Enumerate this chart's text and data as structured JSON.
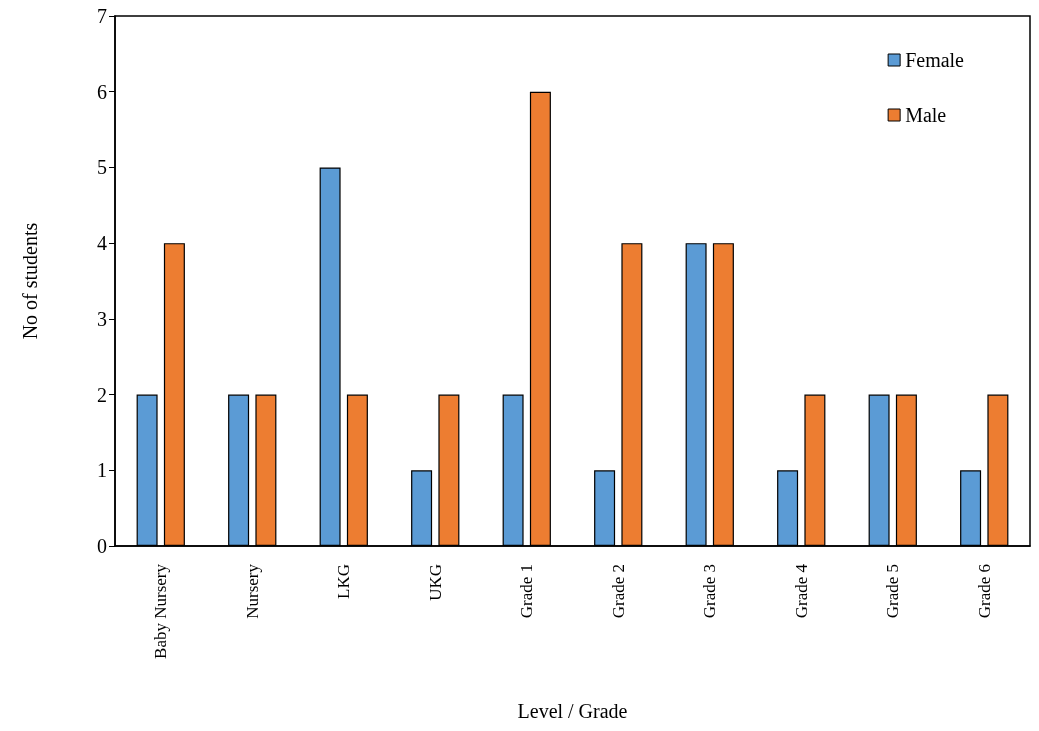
{
  "chart_data": {
    "type": "bar",
    "xlabel": "Level / Grade",
    "ylabel": "No of students",
    "categories": [
      "Baby Nursery",
      "Nursery",
      "LKG",
      "UKG",
      "Grade 1",
      "Grade 2",
      "Grade 3",
      "Grade 4",
      "Grade 5",
      "Grade 6"
    ],
    "series": [
      {
        "name": "Female",
        "color": "#5b9bd5",
        "values": [
          2,
          2,
          5,
          1,
          2,
          1,
          4,
          1,
          2,
          1
        ]
      },
      {
        "name": "Male",
        "color": "#ed7d31",
        "values": [
          4,
          2,
          2,
          2,
          6,
          4,
          4,
          2,
          2,
          2
        ]
      }
    ],
    "ylim": [
      0,
      7
    ],
    "yticks": [
      0,
      1,
      2,
      3,
      4,
      5,
      6,
      7
    ],
    "legend": "top right"
  }
}
